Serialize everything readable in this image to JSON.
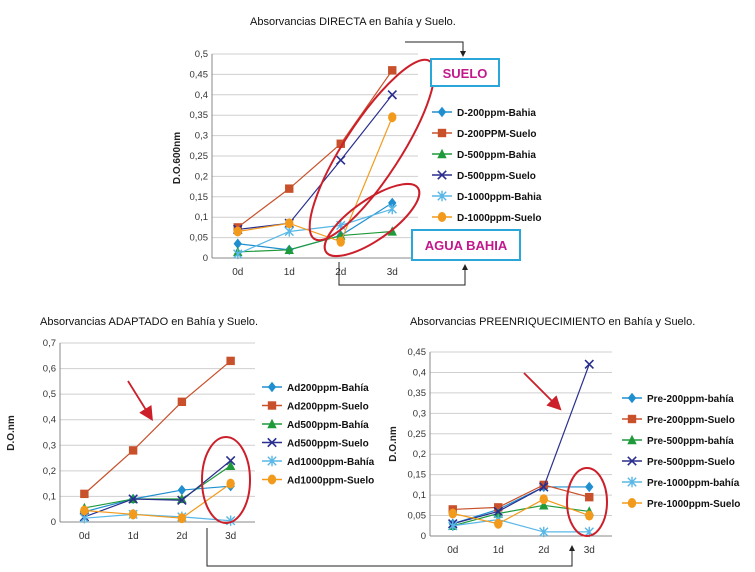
{
  "colors": {
    "s200b": "#1f8fd0",
    "s200s": "#c8502a",
    "s500b": "#1f9a3a",
    "s500s": "#2a2f8f",
    "s1000b": "#58b7e6",
    "s1000s": "#f29a1c",
    "ellipse": "#cc1f2a",
    "box": "#2aa6d8"
  },
  "callouts": {
    "suelo": "SUELO",
    "agua_bahia": "AGUA BAHIA"
  },
  "chart_data": [
    {
      "type": "line",
      "title": "Absorvancias DIRECTA en Bahía y Suelo.",
      "ylabel": "D.O.600nm",
      "categories": [
        "0d",
        "1d",
        "2d",
        "3d"
      ],
      "ylim": [
        0,
        0.5
      ],
      "yticks": [
        "0",
        "0,05",
        "0,1",
        "0,15",
        "0,2",
        "0,25",
        "0,3",
        "0,35",
        "0,4",
        "0,45",
        "0,5"
      ],
      "grid": true,
      "legend_position": "right",
      "series": [
        {
          "name": "D-200ppm-Bahia",
          "marker": "diamond",
          "colorKey": "s200b",
          "values": [
            0.035,
            0.02,
            0.055,
            0.135
          ]
        },
        {
          "name": "D-200PPM-Suelo",
          "marker": "square",
          "colorKey": "s200s",
          "values": [
            0.075,
            0.17,
            0.28,
            0.46
          ]
        },
        {
          "name": "D-500ppm-Bahia",
          "marker": "triangle",
          "colorKey": "s500b",
          "values": [
            0.015,
            0.02,
            0.055,
            0.065
          ]
        },
        {
          "name": "D-500ppm-Suelo",
          "marker": "x",
          "colorKey": "s500s",
          "values": [
            0.07,
            0.085,
            0.24,
            0.4
          ]
        },
        {
          "name": "D-1000ppm-Bahia",
          "marker": "star",
          "colorKey": "s1000b",
          "values": [
            0.01,
            0.065,
            0.08,
            0.12
          ]
        },
        {
          "name": "D-1000ppm-Suelo",
          "marker": "circle",
          "colorKey": "s1000s",
          "values": [
            0.065,
            0.085,
            0.04,
            0.345
          ]
        }
      ]
    },
    {
      "type": "line",
      "title": "Absorvancias ADAPTADO en Bahía y Suelo.",
      "ylabel": "D.O.nm",
      "categories": [
        "0d",
        "1d",
        "2d",
        "3d"
      ],
      "ylim": [
        0,
        0.7
      ],
      "yticks": [
        "0",
        "0,1",
        "0,2",
        "0,3",
        "0,4",
        "0,5",
        "0,6",
        "0,7"
      ],
      "grid": true,
      "legend_position": "right",
      "series": [
        {
          "name": "Ad200ppm-Bahía",
          "marker": "diamond",
          "colorKey": "s200b",
          "values": [
            0.04,
            0.09,
            0.125,
            0.14
          ]
        },
        {
          "name": "Ad200ppm-Suelo",
          "marker": "square",
          "colorKey": "s200s",
          "values": [
            0.11,
            0.28,
            0.47,
            0.63
          ]
        },
        {
          "name": "Ad500ppm-Bahía",
          "marker": "triangle",
          "colorKey": "s500b",
          "values": [
            0.055,
            0.09,
            0.09,
            0.22
          ]
        },
        {
          "name": "Ad500ppm-Suelo",
          "marker": "x",
          "colorKey": "s500s",
          "values": [
            0.02,
            0.09,
            0.085,
            0.24
          ]
        },
        {
          "name": "Ad1000ppm-Bahía",
          "marker": "star",
          "colorKey": "s1000b",
          "values": [
            0.015,
            0.03,
            0.02,
            0.005
          ]
        },
        {
          "name": "Ad1000ppm-Suelo",
          "marker": "circle",
          "colorKey": "s1000s",
          "values": [
            0.045,
            0.03,
            0.015,
            0.15
          ]
        }
      ]
    },
    {
      "type": "line",
      "title": "Absorvancias PREENRIQUECIMIENTO en Bahía y Suelo.",
      "ylabel": "D.O.nm",
      "categories": [
        "0d",
        "1d",
        "2d",
        "3d"
      ],
      "ylim": [
        0,
        0.45
      ],
      "yticks": [
        "0",
        "0,05",
        "0,1",
        "0,15",
        "0,2",
        "0,25",
        "0,3",
        "0,35",
        "0,4",
        "0,45"
      ],
      "grid": true,
      "legend_position": "right",
      "series": [
        {
          "name": "Pre-200ppm-bahía",
          "marker": "diamond",
          "colorKey": "s200b",
          "values": [
            0.03,
            0.065,
            0.12,
            0.12
          ]
        },
        {
          "name": "Pre-200ppm-Suelo",
          "marker": "square",
          "colorKey": "s200s",
          "values": [
            0.065,
            0.07,
            0.125,
            0.095
          ]
        },
        {
          "name": "Pre-500ppm-bahía",
          "marker": "triangle",
          "colorKey": "s500b",
          "values": [
            0.025,
            0.055,
            0.075,
            0.06
          ]
        },
        {
          "name": "Pre-500ppm-Suelo",
          "marker": "x",
          "colorKey": "s500s",
          "values": [
            0.03,
            0.06,
            0.12,
            0.42
          ]
        },
        {
          "name": "Pre-1000ppm-bahía",
          "marker": "star",
          "colorKey": "s1000b",
          "values": [
            0.025,
            0.04,
            0.01,
            0.01
          ]
        },
        {
          "name": "Pre-1000ppm-Suelo",
          "marker": "circle",
          "colorKey": "s1000s",
          "values": [
            0.055,
            0.03,
            0.09,
            0.05
          ]
        }
      ]
    }
  ]
}
